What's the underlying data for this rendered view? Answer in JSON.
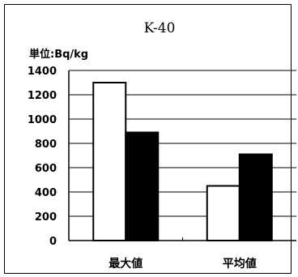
{
  "chart_data": {
    "type": "bar",
    "title": "K-40",
    "unit_label": "単位:Bq/kg",
    "categories": [
      "最大値",
      "平均値"
    ],
    "series": [
      {
        "values": [
          1300,
          450
        ],
        "color": "#ffffff"
      },
      {
        "values": [
          890,
          710
        ],
        "color": "#000000"
      }
    ],
    "ylim": [
      0,
      1400
    ],
    "yticks": [
      "0",
      "200",
      "400",
      "600",
      "800",
      "1000",
      "1200",
      "1400"
    ],
    "grid": true
  }
}
